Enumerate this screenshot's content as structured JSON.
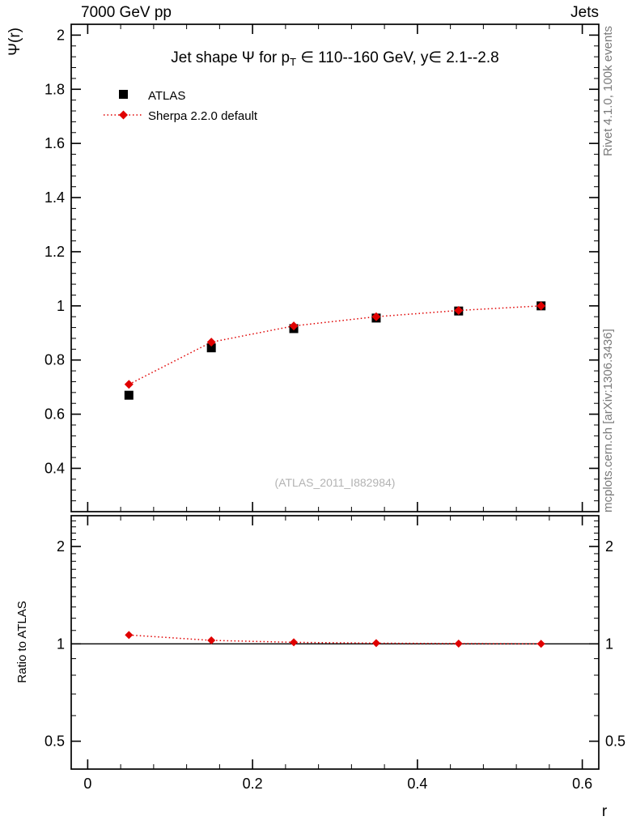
{
  "header": {
    "left": "7000 GeV pp",
    "right": "Jets"
  },
  "side_notes": {
    "top": "Rivet 4.1.0,  100k events",
    "bottom": "mcplots.cern.ch [arXiv:1306.3436]"
  },
  "watermark": "(ATLAS_2011_I882984)",
  "chart_data": {
    "type": "scatter",
    "title_parts": {
      "pre": "Jet shape Ψ for p",
      "sub": "T",
      "post": " ∈ 110--160 GeV, y∈ 2.1--2.8"
    },
    "xlabel": "r",
    "ylabel": "Ψ(r)",
    "ratio_ylabel": "Ratio to ATLAS",
    "x": [
      0.05,
      0.15,
      0.25,
      0.35,
      0.45,
      0.55
    ],
    "series": [
      {
        "name": "ATLAS",
        "marker": "square",
        "color": "#000000",
        "values": [
          0.67,
          0.845,
          0.916,
          0.955,
          0.981,
          1.0
        ]
      },
      {
        "name": "Sherpa 2.2.0 default",
        "marker": "diamond",
        "color": "#e00000",
        "line": "dotted",
        "values": [
          0.71,
          0.866,
          0.926,
          0.96,
          0.983,
          1.0
        ]
      }
    ],
    "ratio": {
      "values": [
        1.065,
        1.025,
        1.011,
        1.005,
        1.002,
        1.0
      ]
    },
    "axes": {
      "xlim": [
        -0.02,
        0.62
      ],
      "ylim": [
        0.24,
        2.04
      ],
      "ratio_ylim": [
        0.41,
        2.49
      ],
      "ratio_scale": "log",
      "x_major_ticks": [
        0,
        0.2,
        0.4,
        0.6
      ],
      "x_minor_step": 0.04,
      "y_major_ticks": [
        0.4,
        0.6,
        0.8,
        1,
        1.2,
        1.4,
        1.6,
        1.8,
        2
      ],
      "y_minor_step": 0.04,
      "ratio_major_ticks": [
        0.5,
        1,
        2
      ],
      "ratio_minor_ticks": [
        0.6,
        0.7,
        0.8,
        0.9,
        1.1,
        1.2,
        1.3,
        1.4,
        1.5,
        1.6,
        1.7,
        1.8,
        1.9,
        2.1,
        2.2,
        2.3,
        2.4
      ],
      "ratio_reference_line": 1,
      "grid": false,
      "legend_position": "top-left-inside"
    }
  }
}
